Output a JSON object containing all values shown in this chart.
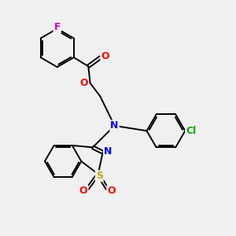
{
  "bg_color": "#f0f0f0",
  "bond_color": "#000000",
  "atom_colors": {
    "F": "#cc00cc",
    "Cl": "#00aa00",
    "O": "#ff0000",
    "N": "#0000ff",
    "S": "#bbaa00",
    "C": "#000000"
  },
  "bond_width": 1.4,
  "fig_w": 3.0,
  "fig_h": 3.0,
  "dpi": 100
}
